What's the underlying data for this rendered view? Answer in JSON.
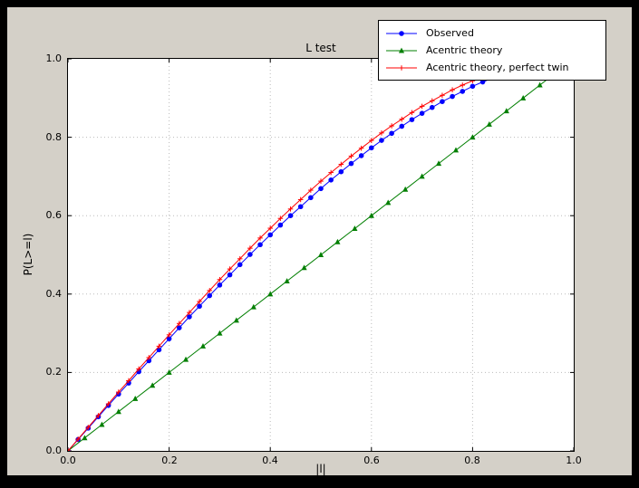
{
  "window": {
    "frame_color": "#000000",
    "figure_bg": "#d4d0c8",
    "plot_bg": "#ffffff"
  },
  "chart_data": {
    "type": "line",
    "title": "L test",
    "xlabel": "|l|",
    "ylabel": "P(L>=l)",
    "xlim": [
      0.0,
      1.0
    ],
    "ylim": [
      0.0,
      1.0
    ],
    "grid": "dotted",
    "grid_color": "#bbbbbb",
    "legend_position": "upper right",
    "x_tick_labels": [
      "0.0",
      "0.2",
      "0.4",
      "0.6",
      "0.8",
      "1.0"
    ],
    "y_tick_labels": [
      "0.0",
      "0.2",
      "0.4",
      "0.6",
      "0.8",
      "1.0"
    ],
    "series": [
      {
        "name": "Observed",
        "color": "#0000ff",
        "marker": "circle",
        "x": [
          0.0,
          0.02,
          0.04,
          0.06,
          0.08,
          0.1,
          0.12,
          0.14,
          0.16,
          0.18,
          0.2,
          0.22,
          0.24,
          0.26,
          0.28,
          0.3,
          0.32,
          0.34,
          0.36,
          0.38,
          0.4,
          0.42,
          0.44,
          0.46,
          0.48,
          0.5,
          0.52,
          0.54,
          0.56,
          0.58,
          0.6,
          0.62,
          0.64,
          0.66,
          0.68,
          0.7,
          0.72,
          0.74,
          0.76,
          0.78,
          0.8,
          0.82,
          0.84,
          0.86
        ],
        "y": [
          0.0,
          0.029,
          0.058,
          0.087,
          0.116,
          0.145,
          0.173,
          0.202,
          0.23,
          0.258,
          0.286,
          0.314,
          0.342,
          0.369,
          0.396,
          0.423,
          0.449,
          0.475,
          0.501,
          0.526,
          0.551,
          0.576,
          0.6,
          0.623,
          0.646,
          0.669,
          0.691,
          0.712,
          0.733,
          0.753,
          0.773,
          0.792,
          0.81,
          0.828,
          0.845,
          0.861,
          0.876,
          0.891,
          0.904,
          0.917,
          0.93,
          0.941,
          0.951,
          0.961
        ]
      },
      {
        "name": "Acentric theory",
        "color": "#007f00",
        "marker": "triangle",
        "x": [
          0.0,
          0.033,
          0.067,
          0.1,
          0.133,
          0.167,
          0.2,
          0.233,
          0.267,
          0.3,
          0.333,
          0.367,
          0.4,
          0.433,
          0.467,
          0.5,
          0.533,
          0.567,
          0.6,
          0.633,
          0.667,
          0.7,
          0.733,
          0.767,
          0.8,
          0.833,
          0.867,
          0.9,
          0.933,
          0.967
        ],
        "y": [
          0.0,
          0.033,
          0.067,
          0.1,
          0.133,
          0.167,
          0.2,
          0.233,
          0.267,
          0.3,
          0.333,
          0.367,
          0.4,
          0.433,
          0.467,
          0.5,
          0.533,
          0.567,
          0.6,
          0.633,
          0.667,
          0.7,
          0.733,
          0.767,
          0.8,
          0.833,
          0.867,
          0.9,
          0.933,
          0.967
        ]
      },
      {
        "name": "Acentric theory, perfect twin",
        "color": "#ff0000",
        "marker": "plus",
        "x": [
          0.0,
          0.02,
          0.04,
          0.06,
          0.08,
          0.1,
          0.12,
          0.14,
          0.16,
          0.18,
          0.2,
          0.22,
          0.24,
          0.26,
          0.28,
          0.3,
          0.32,
          0.34,
          0.36,
          0.38,
          0.4,
          0.42,
          0.44,
          0.46,
          0.48,
          0.5,
          0.52,
          0.54,
          0.56,
          0.58,
          0.6,
          0.62,
          0.64,
          0.66,
          0.68,
          0.7,
          0.72,
          0.74,
          0.76,
          0.78,
          0.8,
          0.82,
          0.84,
          0.86
        ],
        "y": [
          0.0,
          0.03,
          0.06,
          0.09,
          0.12,
          0.15,
          0.179,
          0.209,
          0.238,
          0.267,
          0.296,
          0.325,
          0.353,
          0.381,
          0.409,
          0.437,
          0.464,
          0.49,
          0.517,
          0.543,
          0.568,
          0.593,
          0.617,
          0.641,
          0.665,
          0.688,
          0.71,
          0.731,
          0.752,
          0.772,
          0.792,
          0.811,
          0.829,
          0.846,
          0.863,
          0.879,
          0.893,
          0.907,
          0.921,
          0.933,
          0.944,
          0.954,
          0.964,
          0.972
        ]
      }
    ]
  }
}
